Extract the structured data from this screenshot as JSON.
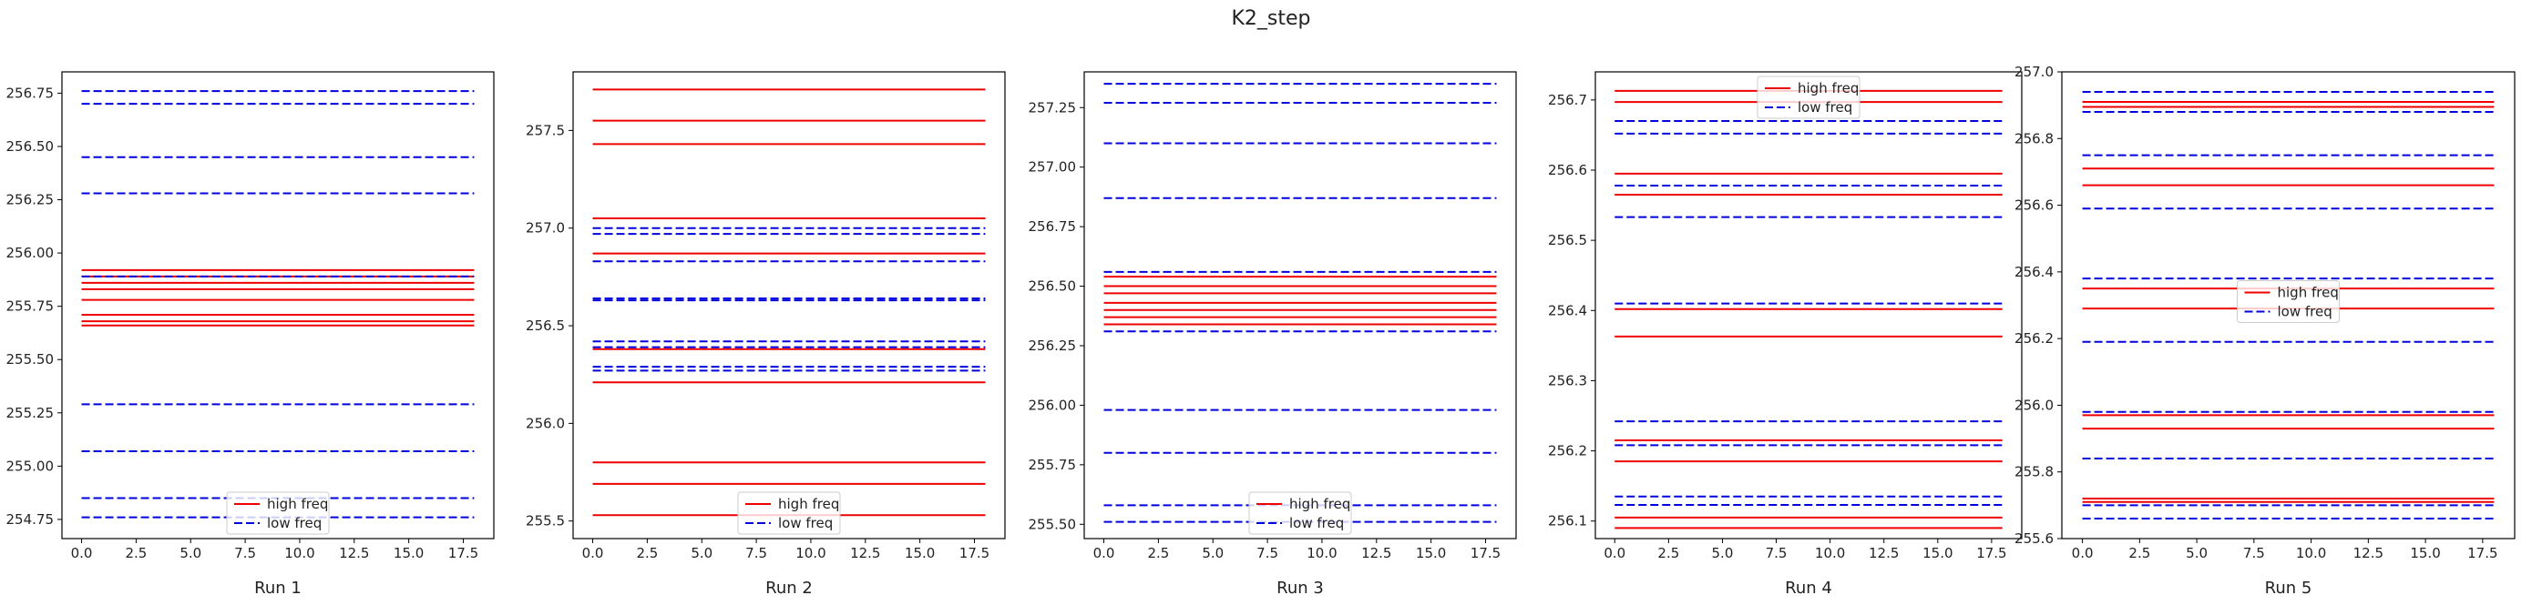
{
  "figure": {
    "suptitle": "K2_step"
  },
  "colors": {
    "high": "#ee0000",
    "low": "#0000dd",
    "axes": "#000000"
  },
  "chart_data": [
    {
      "type": "line",
      "xlabel": "Run 1",
      "xlim": [
        -0.9,
        18.9
      ],
      "ylim": [
        254.66,
        256.85
      ],
      "xticks": [
        0.0,
        2.5,
        5.0,
        7.5,
        10.0,
        12.5,
        15.0,
        17.5
      ],
      "xtick_labels": [
        "0.0",
        "2.5",
        "5.0",
        "7.5",
        "10.0",
        "12.5",
        "15.0",
        "17.5"
      ],
      "yticks": [
        254.75,
        255.0,
        255.25,
        255.5,
        255.75,
        256.0,
        256.25,
        256.5,
        256.75
      ],
      "ytick_labels": [
        "254.75",
        "255.00",
        "255.25",
        "255.50",
        "255.75",
        "256.00",
        "256.25",
        "256.50",
        "256.75"
      ],
      "x_range": [
        0,
        18
      ],
      "series": [
        {
          "name": "high freq",
          "style": "solid",
          "levels": [
            255.92,
            255.89,
            255.86,
            255.83,
            255.78,
            255.71,
            255.68,
            255.66
          ]
        },
        {
          "name": "low freq",
          "style": "dashed",
          "levels": [
            256.76,
            256.7,
            256.45,
            256.28,
            255.89,
            255.29,
            255.07,
            254.85,
            254.76
          ]
        }
      ],
      "legend": "lower center"
    },
    {
      "type": "line",
      "xlabel": "Run 2",
      "xlim": [
        -0.9,
        18.9
      ],
      "ylim": [
        255.41,
        257.8
      ],
      "xticks": [
        0.0,
        2.5,
        5.0,
        7.5,
        10.0,
        12.5,
        15.0,
        17.5
      ],
      "xtick_labels": [
        "0.0",
        "2.5",
        "5.0",
        "7.5",
        "10.0",
        "12.5",
        "15.0",
        "17.5"
      ],
      "yticks": [
        255.5,
        256.0,
        256.5,
        257.0,
        257.5
      ],
      "ytick_labels": [
        "255.5",
        "256.0",
        "256.5",
        "257.0",
        "257.5"
      ],
      "x_range": [
        0,
        18
      ],
      "series": [
        {
          "name": "high freq",
          "style": "solid",
          "levels": [
            257.71,
            257.55,
            257.43,
            257.05,
            256.87,
            256.38,
            256.21,
            255.8,
            255.69,
            255.53
          ]
        },
        {
          "name": "low freq",
          "style": "dashed",
          "levels": [
            257.0,
            256.97,
            256.83,
            256.64,
            256.63,
            256.42,
            256.39,
            256.29,
            256.27
          ]
        }
      ],
      "legend": "lower center"
    },
    {
      "type": "line",
      "xlabel": "Run 3",
      "xlim": [
        -0.9,
        18.9
      ],
      "ylim": [
        255.44,
        257.4
      ],
      "xticks": [
        0.0,
        2.5,
        5.0,
        7.5,
        10.0,
        12.5,
        15.0,
        17.5
      ],
      "xtick_labels": [
        "0.0",
        "2.5",
        "5.0",
        "7.5",
        "10.0",
        "12.5",
        "15.0",
        "17.5"
      ],
      "yticks": [
        255.5,
        255.75,
        256.0,
        256.25,
        256.5,
        256.75,
        257.0,
        257.25
      ],
      "ytick_labels": [
        "255.50",
        "255.75",
        "256.00",
        "256.25",
        "256.50",
        "256.75",
        "257.00",
        "257.25"
      ],
      "x_range": [
        0,
        18
      ],
      "series": [
        {
          "name": "high freq",
          "style": "solid",
          "levels": [
            256.54,
            256.5,
            256.47,
            256.43,
            256.4,
            256.37,
            256.34
          ]
        },
        {
          "name": "low freq",
          "style": "dashed",
          "levels": [
            257.35,
            257.27,
            257.1,
            256.87,
            256.56,
            256.31,
            255.98,
            255.8,
            255.58,
            255.51
          ]
        }
      ],
      "legend": "lower center"
    },
    {
      "type": "line",
      "xlabel": "Run 4",
      "xlim": [
        -0.9,
        18.9
      ],
      "ylim": [
        256.075,
        256.74
      ],
      "xticks": [
        0.0,
        2.5,
        5.0,
        7.5,
        10.0,
        12.5,
        15.0,
        17.5
      ],
      "xtick_labels": [
        "0.0",
        "2.5",
        "5.0",
        "7.5",
        "10.0",
        "12.5",
        "15.0",
        "17.5"
      ],
      "yticks": [
        256.1,
        256.2,
        256.3,
        256.4,
        256.5,
        256.6,
        256.7
      ],
      "ytick_labels": [
        "256.1",
        "256.2",
        "256.3",
        "256.4",
        "256.5",
        "256.6",
        "256.7"
      ],
      "x_range": [
        0,
        18
      ],
      "series": [
        {
          "name": "high freq",
          "style": "solid",
          "levels": [
            256.713,
            256.697,
            256.595,
            256.565,
            256.402,
            256.363,
            256.215,
            256.185,
            256.105,
            256.09
          ]
        },
        {
          "name": "low freq",
          "style": "dashed",
          "levels": [
            256.67,
            256.652,
            256.578,
            256.533,
            256.41,
            256.242,
            256.208,
            256.135,
            256.123
          ]
        }
      ],
      "legend": "upper center"
    },
    {
      "type": "line",
      "xlabel": "Run 5",
      "xlim": [
        -0.9,
        18.9
      ],
      "ylim": [
        255.6,
        257.0
      ],
      "xticks": [
        0.0,
        2.5,
        5.0,
        7.5,
        10.0,
        12.5,
        15.0,
        17.5
      ],
      "xtick_labels": [
        "0.0",
        "2.5",
        "5.0",
        "7.5",
        "10.0",
        "12.5",
        "15.0",
        "17.5"
      ],
      "yticks": [
        255.6,
        255.8,
        256.0,
        256.2,
        256.4,
        256.6,
        256.8,
        257.0
      ],
      "ytick_labels": [
        "255.6",
        "255.8",
        "256.0",
        "256.2",
        "256.4",
        "256.6",
        "256.8",
        "257.0"
      ],
      "x_range": [
        0,
        18
      ],
      "series": [
        {
          "name": "high freq",
          "style": "solid",
          "levels": [
            256.91,
            256.895,
            256.71,
            256.66,
            256.35,
            256.29,
            255.97,
            255.93,
            255.72,
            255.71
          ]
        },
        {
          "name": "low freq",
          "style": "dashed",
          "levels": [
            256.94,
            256.88,
            256.75,
            256.59,
            256.38,
            256.19,
            255.98,
            255.84,
            255.7,
            255.66
          ]
        }
      ],
      "legend": "center"
    }
  ]
}
